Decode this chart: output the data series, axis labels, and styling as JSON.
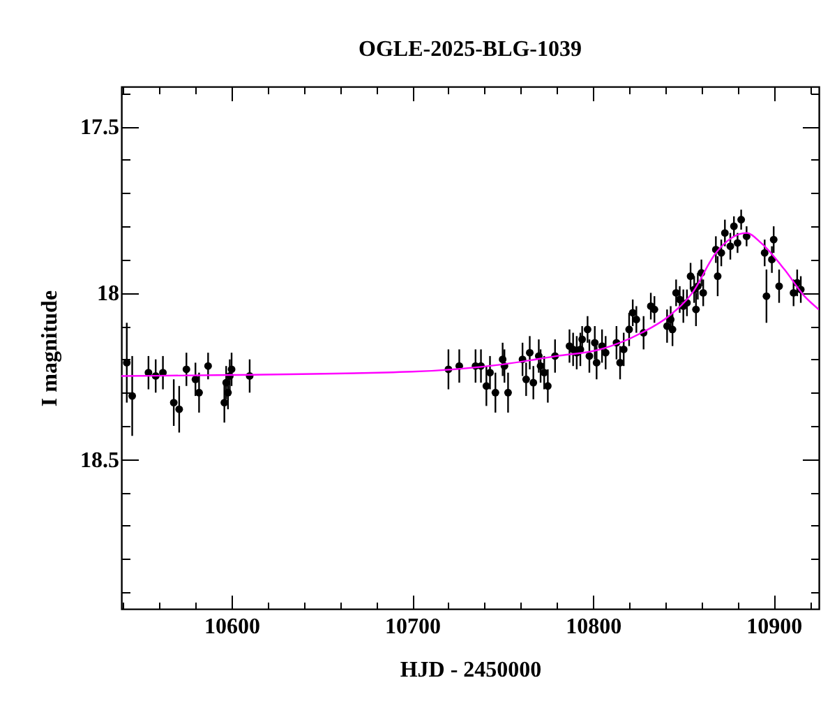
{
  "chart_data": {
    "type": "scatter",
    "title": "OGLE-2025-BLG-1039",
    "xlabel": "HJD - 2450000",
    "ylabel": "I magnitude",
    "xlim": [
      10539,
      10925
    ],
    "ylim": [
      18.95,
      17.38
    ],
    "xticks": [
      {
        "value": 10540,
        "label": null
      },
      {
        "value": 10560,
        "label": null
      },
      {
        "value": 10580,
        "label": null
      },
      10600,
      {
        "value": 10620,
        "label": null
      },
      {
        "value": 10640,
        "label": null
      },
      {
        "value": 10660,
        "label": null
      },
      {
        "value": 10680,
        "label": null
      },
      10700,
      {
        "value": 10720,
        "label": null
      },
      {
        "value": 10740,
        "label": null
      },
      {
        "value": 10760,
        "label": null
      },
      {
        "value": 10780,
        "label": null
      },
      10800,
      {
        "value": 10820,
        "label": null
      },
      {
        "value": 10840,
        "label": null
      },
      {
        "value": 10860,
        "label": null
      },
      {
        "value": 10880,
        "label": null
      },
      10900,
      {
        "value": 10920,
        "label": null
      }
    ],
    "yticks": [
      {
        "value": 17.4,
        "label": null
      },
      17.5,
      {
        "value": 17.6,
        "label": null
      },
      {
        "value": 17.7,
        "label": null
      },
      {
        "value": 17.8,
        "label": null
      },
      {
        "value": 17.9,
        "label": null
      },
      18,
      {
        "value": 18.1,
        "label": null
      },
      {
        "value": 18.2,
        "label": null
      },
      {
        "value": 18.3,
        "label": null
      },
      {
        "value": 18.4,
        "label": null
      },
      18.5,
      {
        "value": 18.6,
        "label": null
      },
      {
        "value": 18.7,
        "label": null
      },
      {
        "value": 18.8,
        "label": null
      },
      {
        "value": 18.9,
        "label": null
      }
    ],
    "grid": false,
    "marker": "circle",
    "series": [
      {
        "color": "#000000",
        "x": [
          10542,
          10545,
          10554,
          10558,
          10562,
          10568,
          10571,
          10575,
          10580,
          10582,
          10587,
          10596,
          10597,
          10598,
          10599,
          10600,
          10610,
          10720,
          10726,
          10735,
          10738,
          10741,
          10743,
          10746,
          10750,
          10751,
          10753,
          10761,
          10763,
          10765,
          10767,
          10770,
          10771,
          10773,
          10775,
          10779,
          10787,
          10789,
          10791,
          10793,
          10794,
          10797,
          10798,
          10801,
          10802,
          10805,
          10807,
          10813,
          10815,
          10817,
          10820,
          10822,
          10824,
          10828,
          10832,
          10834,
          10841,
          10843,
          10844,
          10846,
          10848,
          10850,
          10852,
          10854,
          10856,
          10857,
          10858,
          10860,
          10861,
          10868,
          10869,
          10871,
          10873,
          10876,
          10878,
          10880,
          10882,
          10885,
          10895,
          10896,
          10899,
          10900,
          10903,
          10911,
          10913,
          10915
        ],
        "values": [
          18.21,
          18.31,
          18.24,
          18.25,
          18.24,
          18.33,
          18.35,
          18.23,
          18.26,
          18.3,
          18.22,
          18.33,
          18.27,
          18.3,
          18.25,
          18.23,
          18.25,
          18.23,
          18.22,
          18.22,
          18.22,
          18.28,
          18.24,
          18.3,
          18.2,
          18.22,
          18.3,
          18.2,
          18.26,
          18.18,
          18.27,
          18.19,
          18.22,
          18.24,
          18.28,
          18.19,
          18.16,
          18.17,
          18.18,
          18.17,
          18.14,
          18.11,
          18.19,
          18.15,
          18.21,
          18.16,
          18.18,
          18.15,
          18.21,
          18.17,
          18.11,
          18.06,
          18.08,
          18.12,
          18.04,
          18.05,
          18.1,
          18.08,
          18.11,
          18,
          18.02,
          18.04,
          18.03,
          17.95,
          17.99,
          18.05,
          17.98,
          17.94,
          18,
          17.87,
          17.95,
          17.88,
          17.82,
          17.86,
          17.8,
          17.85,
          17.78,
          17.83,
          17.88,
          18.01,
          17.9,
          17.84,
          17.98,
          18,
          17.97,
          17.99
        ],
        "errors": [
          0.12,
          0.12,
          0.05,
          0.05,
          0.05,
          0.07,
          0.07,
          0.05,
          0.05,
          0.06,
          0.04,
          0.06,
          0.05,
          0.05,
          0.05,
          0.05,
          0.05,
          0.06,
          0.05,
          0.05,
          0.05,
          0.06,
          0.05,
          0.06,
          0.05,
          0.05,
          0.06,
          0.05,
          0.05,
          0.05,
          0.05,
          0.05,
          0.05,
          0.05,
          0.05,
          0.05,
          0.05,
          0.05,
          0.05,
          0.05,
          0.04,
          0.04,
          0.05,
          0.05,
          0.05,
          0.05,
          0.05,
          0.05,
          0.05,
          0.05,
          0.05,
          0.04,
          0.04,
          0.05,
          0.04,
          0.04,
          0.05,
          0.04,
          0.05,
          0.04,
          0.04,
          0.05,
          0.04,
          0.04,
          0.04,
          0.05,
          0.04,
          0.04,
          0.04,
          0.04,
          0.06,
          0.04,
          0.04,
          0.04,
          0.03,
          0.03,
          0.03,
          0.03,
          0.04,
          0.08,
          0.04,
          0.04,
          0.05,
          0.04,
          0.04,
          0.04
        ]
      },
      {
        "type": "line",
        "marker": "none",
        "color": "#ff00ff",
        "x": [
          10539,
          10600,
          10700,
          10750,
          10780,
          10804,
          10827,
          10842,
          10855,
          10868,
          10885,
          10893,
          10906,
          10917,
          10925
        ],
        "values": [
          18.25,
          18.247,
          18.237,
          18.215,
          18.19,
          18.17,
          18.12,
          18.07,
          18.0,
          17.88,
          17.82,
          17.85,
          17.93,
          18.01,
          18.05
        ]
      }
    ]
  }
}
